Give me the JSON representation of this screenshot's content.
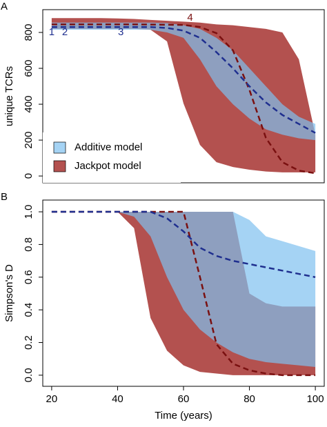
{
  "chart_data": [
    {
      "type": "band",
      "panel_label": "A",
      "ylabel": "unique TCRs",
      "x": [
        20,
        25,
        30,
        35,
        40,
        45,
        50,
        55,
        60,
        65,
        70,
        75,
        80,
        85,
        90,
        95,
        100
      ],
      "xlim": [
        17.3,
        102.7
      ],
      "ylim": [
        -38,
        927
      ],
      "yticks": [
        0,
        200,
        400,
        600,
        800
      ],
      "legend": "bottom-left",
      "series": [
        {
          "name": "Jackpot model",
          "color": "#b3514f",
          "mean_color": "#7a1010",
          "upper": [
            880,
            880,
            880,
            880,
            878,
            875,
            870,
            865,
            860,
            855,
            845,
            840,
            830,
            820,
            800,
            650,
            230
          ],
          "lower": [
            820,
            820,
            820,
            820,
            820,
            820,
            815,
            750,
            404,
            173,
            77,
            50,
            35,
            25,
            20,
            20,
            20
          ],
          "mean": [
            845,
            845,
            845,
            845,
            845,
            845,
            844,
            843,
            842,
            830,
            796,
            700,
            480,
            212,
            77,
            30,
            15
          ]
        },
        {
          "name": "Additive model",
          "color": "#7fc0f0",
          "mean_color": "#1f2f8f",
          "upper": [
            855,
            855,
            855,
            855,
            855,
            855,
            855,
            852,
            840,
            820,
            770,
            700,
            600,
            500,
            400,
            330,
            290
          ],
          "lower": [
            815,
            815,
            815,
            815,
            815,
            815,
            815,
            800,
            770,
            650,
            500,
            400,
            320,
            260,
            230,
            210,
            200
          ],
          "mean": [
            830,
            830,
            830,
            830,
            830,
            830,
            830,
            825,
            810,
            770,
            690,
            600,
            500,
            410,
            340,
            290,
            240
          ]
        }
      ],
      "annotations": [
        {
          "text": "1",
          "x": 20,
          "y": 800,
          "color": "#1f2f8f"
        },
        {
          "text": "2",
          "x": 24,
          "y": 800,
          "color": "#1f2f8f"
        },
        {
          "text": "3",
          "x": 41,
          "y": 800,
          "color": "#1f2f8f"
        },
        {
          "text": "4",
          "x": 62,
          "y": 880,
          "color": "#7a1010"
        }
      ]
    },
    {
      "type": "band",
      "panel_label": "B",
      "ylabel": "Simpson's D",
      "xlabel": "Time (years)",
      "x": [
        20,
        25,
        30,
        35,
        40,
        45,
        50,
        55,
        60,
        65,
        70,
        75,
        80,
        85,
        90,
        95,
        100
      ],
      "xlim": [
        17.3,
        102.7
      ],
      "ylim": [
        -0.068,
        1.072
      ],
      "xticks": [
        20,
        40,
        60,
        80,
        100
      ],
      "yticks": [
        {
          "value": 0,
          "label": "0.0"
        },
        0.2,
        0.4,
        0.6,
        0.8,
        {
          "value": 1,
          "label": "1.0"
        }
      ],
      "series": [
        {
          "name": "Jackpot model",
          "color": "#b3514f",
          "mean_color": "#7a1010",
          "upper": [
            1,
            1,
            1,
            1,
            1,
            1,
            1,
            1,
            1,
            1,
            1,
            1,
            0.5,
            0.44,
            0.42,
            0.42,
            0.42
          ],
          "lower": [
            1,
            1,
            1,
            1,
            1,
            0.9,
            0.35,
            0.15,
            0.06,
            0.02,
            0.01,
            0,
            0,
            0,
            0,
            0,
            0
          ],
          "mean": [
            1,
            1,
            1,
            1,
            1,
            1,
            1,
            1,
            1,
            0.6,
            0.19,
            0.07,
            0.03,
            0.01,
            0,
            0,
            0
          ]
        },
        {
          "name": "Additive model",
          "color": "#7fc0f0",
          "mean_color": "#1f2f8f",
          "upper": [
            1,
            1,
            1,
            1,
            1,
            1,
            1,
            1,
            1,
            1,
            1,
            1,
            0.95,
            0.85,
            0.82,
            0.79,
            0.76
          ],
          "lower": [
            1,
            1,
            1,
            1,
            1,
            0.97,
            0.85,
            0.6,
            0.4,
            0.28,
            0.2,
            0.14,
            0.1,
            0.08,
            0.07,
            0.06,
            0.05
          ],
          "mean": [
            1,
            1,
            1,
            1,
            1,
            1,
            1,
            0.96,
            0.88,
            0.78,
            0.73,
            0.7,
            0.68,
            0.66,
            0.64,
            0.62,
            0.6
          ]
        }
      ]
    }
  ]
}
